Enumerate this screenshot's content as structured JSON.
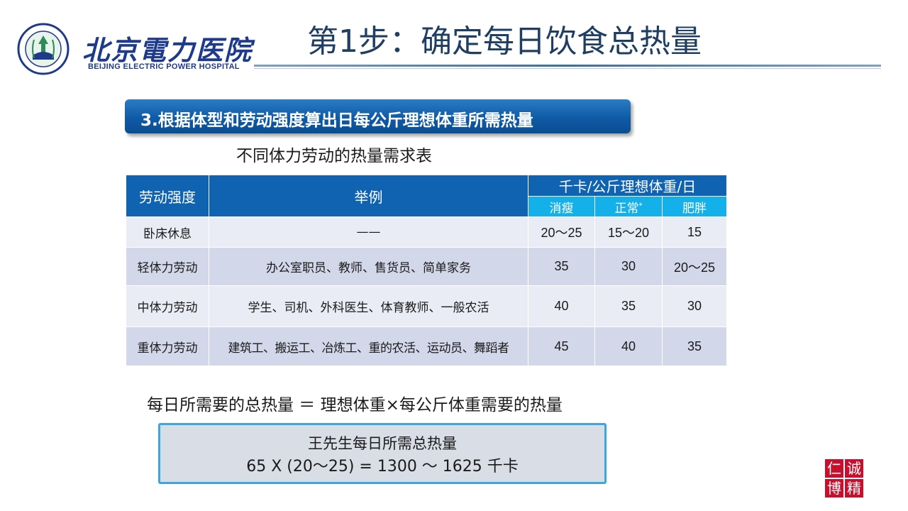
{
  "logo": {
    "name_cn": "北京電力医院",
    "name_en": "BEIJING ELECTRIC POWER HOSPITAL"
  },
  "title": "第1步：确定每日饮食总热量",
  "banner": "3.根据体型和劳动强度算出日每公斤理想体重所需热量",
  "table_caption": "不同体力劳动的热量需求表",
  "table": {
    "header": {
      "intensity": "劳动强度",
      "example": "举例",
      "unit": "千卡/公斤理想体重/日",
      "thin": "消瘦",
      "normal": "正常",
      "normal_mark": "*",
      "fat": "肥胖"
    },
    "rows": [
      {
        "intensity": "卧床休息",
        "example": "——",
        "thin": "20～25",
        "normal": "15～20",
        "fat": "15"
      },
      {
        "intensity": "轻体力劳动",
        "example": "办公室职员、教师、售货员、简单家务",
        "thin": "35",
        "normal": "30",
        "fat": "20～25"
      },
      {
        "intensity": "中体力劳动",
        "example": "学生、司机、外科医生、体育教师、一般农活",
        "thin": "40",
        "normal": "35",
        "fat": "30"
      },
      {
        "intensity": "重体力劳动",
        "example": "建筑工、搬运工、冶炼工、重的农活、运动员、舞蹈者",
        "thin": "45",
        "normal": "40",
        "fat": "35"
      }
    ]
  },
  "formula": "每日所需要的总热量 ＝ 理想体重×每公斤体重需要的热量",
  "result": {
    "line1": "王先生每日所需总热量",
    "line2": "65 X (20～25) = 1300 ～ 1625 千卡"
  },
  "seal": {
    "c1": "仁",
    "c2": "诚",
    "c3": "博",
    "c4": "精"
  },
  "colors": {
    "brand": "#1e3a8a",
    "header_dark": "#0f63b0",
    "header_light": "#14b0ea",
    "seal": "#c8102e"
  }
}
